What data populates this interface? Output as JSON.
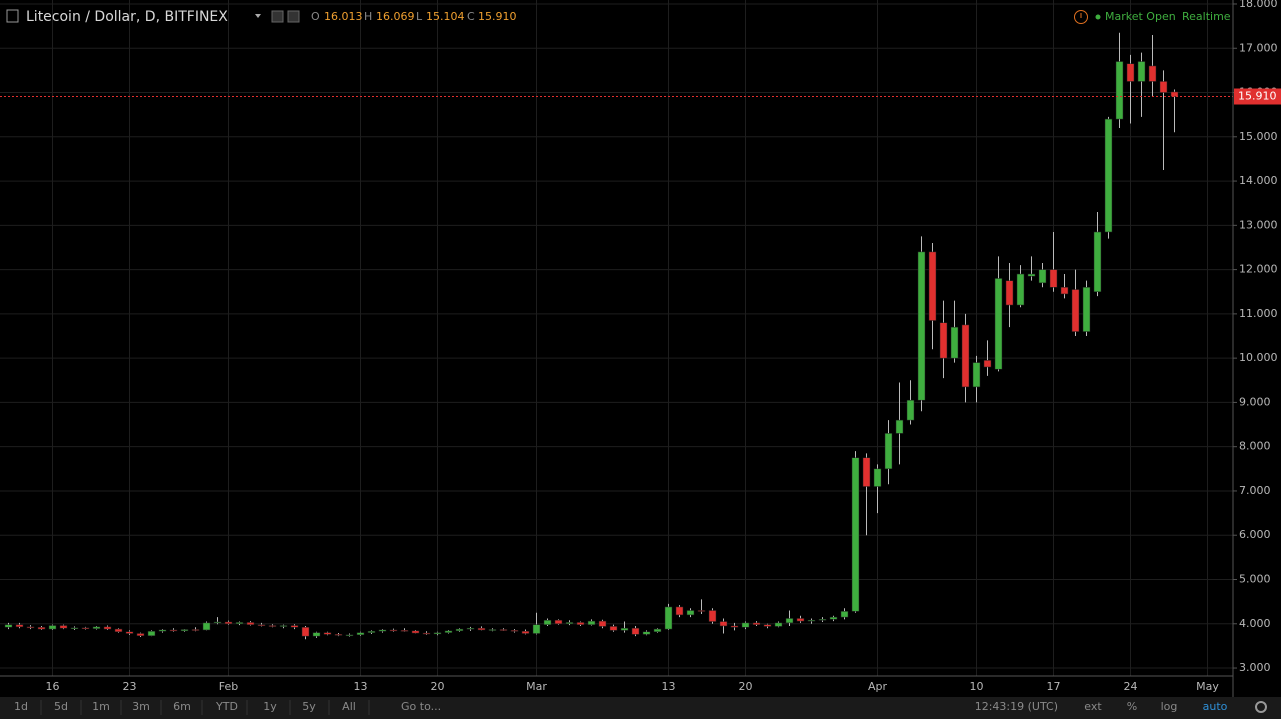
{
  "header": {
    "title": "Litecoin / Dollar, D, BITFINEX",
    "ohlc_letters": [
      "O",
      "H",
      "L",
      "C"
    ],
    "ohlc_values": [
      "16.013",
      "16.069",
      "15.104",
      "15.910"
    ],
    "status": "Market Open",
    "feed": "Realtime"
  },
  "toolbar": {
    "ranges": [
      "1d",
      "5d",
      "1m",
      "3m",
      "6m",
      "YTD",
      "1y",
      "5y",
      "All",
      "Go to..."
    ],
    "time": "12:43:19 (UTC)",
    "options": [
      "ext",
      "%",
      "log",
      "auto"
    ]
  },
  "chart_data": {
    "type": "candlestick",
    "up_color": "#3fae3f",
    "down_color": "#e0302f",
    "grid": true,
    "categories": [
      null,
      null,
      null,
      null,
      "16",
      null,
      null,
      null,
      null,
      null,
      null,
      "23",
      null,
      null,
      null,
      null,
      null,
      null,
      null,
      null,
      "Feb",
      null,
      null,
      null,
      null,
      null,
      null,
      null,
      null,
      null,
      null,
      null,
      "13",
      null,
      null,
      null,
      null,
      null,
      null,
      "20",
      null,
      null,
      null,
      null,
      null,
      null,
      null,
      null,
      "Mar",
      null,
      null,
      null,
      null,
      null,
      null,
      null,
      null,
      null,
      null,
      null,
      "13",
      null,
      null,
      null,
      null,
      null,
      null,
      "20",
      null,
      null,
      null,
      null,
      null,
      null,
      null,
      null,
      null,
      null,
      null,
      "Apr",
      null,
      null,
      null,
      null,
      null,
      null,
      null,
      null,
      "10",
      null,
      null,
      null,
      null,
      null,
      null,
      "17",
      null,
      null,
      null,
      null,
      null,
      null,
      "24",
      null,
      null,
      null,
      null,
      null,
      null,
      "May"
    ],
    "open": [
      3.92,
      3.98,
      3.93,
      3.92,
      3.88,
      3.96,
      3.9,
      3.91,
      3.89,
      3.93,
      3.88,
      3.82,
      3.78,
      3.73,
      3.83,
      3.86,
      3.84,
      3.87,
      3.86,
      4.02,
      4.04,
      4.0,
      4.03,
      3.98,
      3.96,
      3.94,
      3.96,
      3.92,
      3.72,
      3.8,
      3.76,
      3.74,
      3.75,
      3.8,
      3.83,
      3.86,
      3.85,
      3.84,
      3.79,
      3.77,
      3.8,
      3.84,
      3.88,
      3.9,
      3.86,
      3.87,
      3.85,
      3.83,
      3.78,
      3.98,
      4.08,
      4.0,
      4.03,
      3.98,
      4.06,
      3.94,
      3.85,
      3.9,
      3.76,
      3.82,
      3.88,
      4.38,
      4.2,
      4.3,
      4.3,
      4.05,
      3.95,
      3.92,
      4.02,
      3.98,
      3.94,
      4.02,
      4.12,
      4.06,
      4.08,
      4.1,
      4.15,
      4.28,
      7.75,
      7.1,
      7.5,
      8.3,
      8.6,
      9.05,
      12.4,
      10.8,
      10.0,
      10.75,
      9.35,
      9.95,
      9.75,
      11.75,
      11.2,
      11.85,
      11.7,
      12.0,
      11.6,
      11.55,
      10.6,
      11.5,
      12.85,
      15.4,
      16.65,
      16.25,
      16.6,
      16.25,
      16.013,
      null,
      null,
      null
    ],
    "high": [
      4.02,
      4.02,
      3.97,
      3.95,
      3.98,
      3.98,
      3.94,
      3.93,
      3.95,
      3.96,
      3.9,
      3.85,
      3.8,
      3.85,
      3.88,
      3.9,
      3.88,
      3.92,
      4.05,
      4.15,
      4.07,
      4.05,
      4.06,
      4.02,
      3.99,
      3.98,
      3.99,
      3.95,
      3.82,
      3.82,
      3.79,
      3.78,
      3.82,
      3.85,
      3.88,
      3.89,
      3.9,
      3.86,
      3.83,
      3.82,
      3.86,
      3.9,
      3.93,
      3.94,
      3.9,
      3.9,
      3.88,
      3.87,
      4.25,
      4.12,
      4.1,
      4.08,
      4.05,
      4.1,
      4.09,
      3.98,
      4.05,
      3.95,
      3.85,
      3.9,
      4.45,
      4.42,
      4.35,
      4.55,
      4.35,
      4.12,
      4.02,
      4.05,
      4.06,
      4.0,
      4.05,
      4.3,
      4.18,
      4.12,
      4.15,
      4.18,
      4.35,
      7.9,
      7.85,
      7.6,
      8.6,
      9.45,
      9.5,
      12.75,
      12.6,
      11.3,
      11.3,
      11.0,
      10.05,
      10.4,
      12.3,
      12.15,
      12.1,
      12.3,
      12.15,
      12.85,
      11.9,
      12.0,
      11.75,
      13.3,
      15.45,
      17.35,
      16.85,
      16.9,
      17.3,
      16.5,
      16.069,
      null,
      null,
      null
    ],
    "low": [
      3.88,
      3.9,
      3.88,
      3.86,
      3.86,
      3.88,
      3.86,
      3.87,
      3.87,
      3.86,
      3.8,
      3.75,
      3.7,
      3.72,
      3.8,
      3.82,
      3.82,
      3.83,
      3.85,
      3.99,
      3.98,
      3.97,
      3.96,
      3.94,
      3.92,
      3.9,
      3.88,
      3.65,
      3.68,
      3.74,
      3.72,
      3.71,
      3.73,
      3.77,
      3.8,
      3.82,
      3.82,
      3.78,
      3.75,
      3.74,
      3.78,
      3.82,
      3.84,
      3.85,
      3.83,
      3.84,
      3.8,
      3.76,
      3.76,
      3.95,
      3.98,
      3.97,
      3.95,
      3.96,
      3.9,
      3.82,
      3.8,
      3.72,
      3.74,
      3.8,
      3.86,
      4.15,
      4.15,
      4.22,
      4.0,
      3.78,
      3.85,
      3.88,
      3.95,
      3.9,
      3.92,
      3.95,
      4.02,
      4.0,
      4.04,
      4.06,
      4.1,
      4.25,
      6.0,
      6.5,
      7.15,
      7.6,
      8.5,
      8.8,
      10.2,
      9.55,
      9.9,
      9.0,
      9.0,
      9.6,
      9.7,
      10.7,
      11.15,
      11.75,
      11.6,
      11.5,
      11.35,
      10.5,
      10.5,
      11.4,
      12.7,
      15.2,
      15.3,
      15.45,
      15.9,
      14.25,
      15.104,
      null,
      null,
      null
    ],
    "close": [
      3.98,
      3.93,
      3.92,
      3.88,
      3.96,
      3.9,
      3.91,
      3.89,
      3.93,
      3.88,
      3.82,
      3.78,
      3.73,
      3.83,
      3.86,
      3.84,
      3.87,
      3.86,
      4.02,
      4.04,
      4.0,
      4.03,
      3.98,
      3.96,
      3.94,
      3.96,
      3.92,
      3.72,
      3.8,
      3.76,
      3.74,
      3.75,
      3.8,
      3.83,
      3.86,
      3.85,
      3.84,
      3.79,
      3.77,
      3.8,
      3.84,
      3.88,
      3.9,
      3.86,
      3.87,
      3.85,
      3.83,
      3.78,
      3.98,
      4.08,
      4.0,
      4.03,
      3.98,
      4.06,
      3.94,
      3.85,
      3.9,
      3.76,
      3.82,
      3.88,
      4.38,
      4.2,
      4.3,
      4.28,
      4.05,
      3.95,
      3.92,
      4.02,
      3.98,
      3.94,
      4.02,
      4.12,
      4.06,
      4.08,
      4.1,
      4.15,
      4.28,
      7.75,
      7.1,
      7.5,
      8.3,
      8.6,
      9.05,
      12.4,
      10.85,
      10.0,
      10.7,
      9.35,
      9.9,
      9.8,
      11.8,
      11.2,
      11.9,
      11.9,
      12.0,
      11.6,
      11.45,
      10.6,
      11.6,
      12.85,
      15.4,
      16.7,
      16.25,
      16.7,
      16.25,
      16.0,
      15.91,
      null,
      null,
      null
    ],
    "last_price": {
      "value": 15.91,
      "label": "15.910"
    },
    "ylim": [
      2.82,
      18.09
    ],
    "yticks": [
      {
        "value": 3,
        "label": "3.000"
      },
      {
        "value": 4,
        "label": "4.000"
      },
      {
        "value": 5,
        "label": "5.000"
      },
      {
        "value": 6,
        "label": "6.000"
      },
      {
        "value": 7,
        "label": "7.000"
      },
      {
        "value": 8,
        "label": "8.000"
      },
      {
        "value": 9,
        "label": "9.000"
      },
      {
        "value": 10,
        "label": "10.000"
      },
      {
        "value": 11,
        "label": "11.000"
      },
      {
        "value": 12,
        "label": "12.000"
      },
      {
        "value": 13,
        "label": "13.000"
      },
      {
        "value": 14,
        "label": "14.000"
      },
      {
        "value": 15,
        "label": "15.000"
      },
      {
        "value": 16,
        "label": "16.000"
      },
      {
        "value": 17,
        "label": "17.000"
      },
      {
        "value": 18,
        "label": "18.000"
      }
    ]
  }
}
